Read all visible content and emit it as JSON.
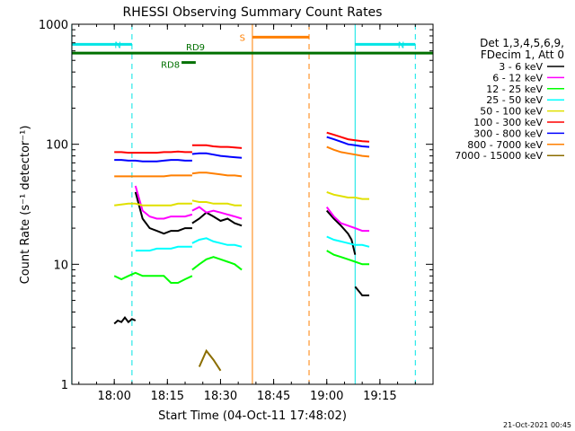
{
  "chart_data": {
    "type": "line",
    "title": "RHESSI Observing Summary Count Rates",
    "xlabel": "Start Time (04-Oct-11 17:48:02)",
    "ylabel": "Count Rate (s⁻¹ detector⁻¹)",
    "yscale": "log",
    "ylim": [
      1,
      1000
    ],
    "xlim": [
      "17:48:02",
      "19:30:00"
    ],
    "x_ticks": [
      "18:00",
      "18:15",
      "18:30",
      "18:45",
      "19:00",
      "19:15"
    ],
    "y_ticks": [
      "1",
      "10",
      "100",
      "1000"
    ],
    "legend_header": [
      "Det 1,3,4,5,6,9,",
      "FDecim 1, Att 0"
    ],
    "legend_position": "right",
    "series": [
      {
        "name": "3 - 6 keV",
        "color": "#000000",
        "segments": [
          {
            "x": [
              "18:00",
              "18:01",
              "18:02",
              "18:03",
              "18:04",
              "18:05",
              "18:06"
            ],
            "y": [
              3.2,
              3.4,
              3.3,
              3.6,
              3.3,
              3.5,
              3.4
            ]
          },
          {
            "x": [
              "18:06",
              "18:08",
              "18:10",
              "18:12",
              "18:14",
              "18:16",
              "18:18",
              "18:20",
              "18:22"
            ],
            "y": [
              40,
              24,
              20,
              19,
              18,
              19,
              19,
              20,
              20
            ]
          },
          {
            "x": [
              "18:22",
              "18:24",
              "18:26",
              "18:28",
              "18:30",
              "18:32",
              "18:34",
              "18:36"
            ],
            "y": [
              22,
              24,
              27,
              25,
              23,
              24,
              22,
              21
            ]
          },
          {
            "x": [
              "19:00",
              "19:02",
              "19:04",
              "19:06",
              "19:07",
              "19:08"
            ],
            "y": [
              28,
              24,
              21,
              18,
              16,
              12
            ]
          },
          {
            "x": [
              "19:08",
              "19:09",
              "19:10",
              "19:11",
              "19:12"
            ],
            "y": [
              6.5,
              6.0,
              5.5,
              5.5,
              5.5
            ]
          }
        ]
      },
      {
        "name": "6 - 12 keV",
        "color": "#ff00ff",
        "segments": [
          {
            "x": [
              "18:06",
              "18:08",
              "18:10",
              "18:12",
              "18:14",
              "18:16",
              "18:18",
              "18:20",
              "18:22"
            ],
            "y": [
              45,
              28,
              25,
              24,
              24,
              25,
              25,
              25,
              26
            ]
          },
          {
            "x": [
              "18:22",
              "18:24",
              "18:26",
              "18:28",
              "18:30",
              "18:32",
              "18:34",
              "18:36"
            ],
            "y": [
              28,
              30,
              27,
              28,
              27,
              26,
              25,
              24
            ]
          },
          {
            "x": [
              "19:00",
              "19:02",
              "19:04",
              "19:06",
              "19:08",
              "19:10",
              "19:12"
            ],
            "y": [
              30,
              25,
              22,
              21,
              20,
              19,
              19
            ]
          }
        ]
      },
      {
        "name": "12 - 25 keV",
        "color": "#00ff00",
        "segments": [
          {
            "x": [
              "18:00",
              "18:02",
              "18:04",
              "18:06",
              "18:08",
              "18:10",
              "18:12",
              "18:14",
              "18:16",
              "18:18",
              "18:20",
              "18:22"
            ],
            "y": [
              8.0,
              7.5,
              8.0,
              8.5,
              8.0,
              8.0,
              8.0,
              8.0,
              7.0,
              7.0,
              7.5,
              8.0
            ]
          },
          {
            "x": [
              "18:22",
              "18:24",
              "18:26",
              "18:28",
              "18:30",
              "18:32",
              "18:34",
              "18:36"
            ],
            "y": [
              9.0,
              10,
              11,
              11.5,
              11,
              10.5,
              10,
              9.0
            ]
          },
          {
            "x": [
              "19:00",
              "19:02",
              "19:04",
              "19:06",
              "19:08",
              "19:10",
              "19:12"
            ],
            "y": [
              13,
              12,
              11.5,
              11,
              10.5,
              10,
              10
            ]
          }
        ]
      },
      {
        "name": "25 - 50 keV",
        "color": "#00ffff",
        "segments": [
          {
            "x": [
              "18:06",
              "18:08",
              "18:10",
              "18:12",
              "18:14",
              "18:16",
              "18:18",
              "18:20",
              "18:22"
            ],
            "y": [
              13,
              13,
              13,
              13.5,
              13.5,
              13.5,
              14,
              14,
              14
            ]
          },
          {
            "x": [
              "18:22",
              "18:24",
              "18:26",
              "18:28",
              "18:30",
              "18:32",
              "18:34",
              "18:36"
            ],
            "y": [
              15,
              16,
              16.5,
              15.5,
              15,
              14.5,
              14.5,
              14
            ]
          },
          {
            "x": [
              "19:00",
              "19:02",
              "19:04",
              "19:06",
              "19:08",
              "19:10",
              "19:12"
            ],
            "y": [
              17,
              16,
              15.5,
              15,
              14.5,
              14.5,
              14
            ]
          }
        ]
      },
      {
        "name": "50 - 100 keV",
        "color": "#e0e000",
        "segments": [
          {
            "x": [
              "18:00",
              "18:02",
              "18:04",
              "18:06",
              "18:08",
              "18:10",
              "18:12",
              "18:14",
              "18:16",
              "18:18",
              "18:20",
              "18:22"
            ],
            "y": [
              31,
              31.5,
              32,
              32,
              31,
              31,
              31,
              31,
              31,
              32,
              32,
              32
            ]
          },
          {
            "x": [
              "18:22",
              "18:24",
              "18:26",
              "18:28",
              "18:30",
              "18:32",
              "18:34",
              "18:36"
            ],
            "y": [
              34,
              33,
              33,
              32,
              32,
              32,
              31,
              31
            ]
          },
          {
            "x": [
              "19:00",
              "19:02",
              "19:04",
              "19:06",
              "19:08",
              "19:10",
              "19:12"
            ],
            "y": [
              40,
              38,
              37,
              36,
              36,
              35,
              35
            ]
          }
        ]
      },
      {
        "name": "100 - 300 keV",
        "color": "#ff0000",
        "segments": [
          {
            "x": [
              "18:00",
              "18:02",
              "18:04",
              "18:06",
              "18:08",
              "18:10",
              "18:12",
              "18:14",
              "18:16",
              "18:18",
              "18:20",
              "18:22"
            ],
            "y": [
              86,
              86,
              85,
              85,
              85,
              85,
              85,
              86,
              86,
              87,
              86,
              86
            ]
          },
          {
            "x": [
              "18:22",
              "18:24",
              "18:26",
              "18:28",
              "18:30",
              "18:32",
              "18:34",
              "18:36"
            ],
            "y": [
              98,
              98,
              98,
              96,
              95,
              95,
              94,
              93
            ]
          },
          {
            "x": [
              "19:00",
              "19:02",
              "19:04",
              "19:06",
              "19:08",
              "19:10",
              "19:12"
            ],
            "y": [
              125,
              120,
              115,
              110,
              108,
              106,
              105
            ]
          }
        ]
      },
      {
        "name": "300 - 800 keV",
        "color": "#0000ff",
        "segments": [
          {
            "x": [
              "18:00",
              "18:02",
              "18:04",
              "18:06",
              "18:08",
              "18:10",
              "18:12",
              "18:14",
              "18:16",
              "18:18",
              "18:20",
              "18:22"
            ],
            "y": [
              74,
              74,
              73,
              73,
              72,
              72,
              72,
              73,
              74,
              74,
              73,
              73
            ]
          },
          {
            "x": [
              "18:22",
              "18:24",
              "18:26",
              "18:28",
              "18:30",
              "18:32",
              "18:34",
              "18:36"
            ],
            "y": [
              83,
              84,
              84,
              82,
              80,
              79,
              78,
              77
            ]
          },
          {
            "x": [
              "19:00",
              "19:02",
              "19:04",
              "19:06",
              "19:08",
              "19:10",
              "19:12"
            ],
            "y": [
              115,
              110,
              105,
              100,
              98,
              96,
              95
            ]
          }
        ]
      },
      {
        "name": "800 - 7000 keV",
        "color": "#ff7f00",
        "segments": [
          {
            "x": [
              "18:00",
              "18:02",
              "18:04",
              "18:06",
              "18:08",
              "18:10",
              "18:12",
              "18:14",
              "18:16",
              "18:18",
              "18:20",
              "18:22"
            ],
            "y": [
              54,
              54,
              54,
              54,
              54,
              54,
              54,
              54,
              55,
              55,
              55,
              55
            ]
          },
          {
            "x": [
              "18:22",
              "18:24",
              "18:26",
              "18:28",
              "18:30",
              "18:32",
              "18:34",
              "18:36"
            ],
            "y": [
              57,
              58,
              58,
              57,
              56,
              55,
              55,
              54
            ]
          },
          {
            "x": [
              "19:00",
              "19:02",
              "19:04",
              "19:06",
              "19:08",
              "19:10",
              "19:12"
            ],
            "y": [
              95,
              90,
              86,
              84,
              82,
              80,
              79
            ]
          }
        ]
      },
      {
        "name": "7000 - 15000 keV",
        "color": "#8b6d00",
        "segments": [
          {
            "x": [
              "18:24",
              "18:26",
              "18:28",
              "18:30"
            ],
            "y": [
              1.4,
              1.9,
              1.6,
              1.3
            ]
          }
        ]
      }
    ],
    "annotations": [
      {
        "label": "N",
        "color": "#00e5e5",
        "level": 680,
        "x_start": "17:48",
        "x_end": "18:05",
        "marker_line_x": "18:05",
        "marker_style": "dashed"
      },
      {
        "label": "N",
        "color": "#00e5e5",
        "level": 680,
        "x_start": "19:08",
        "x_end": "19:25",
        "marker_line_x": "19:25",
        "marker_style": "dashed"
      },
      {
        "label": "S",
        "color": "#ff7f00",
        "level": 780,
        "x_start": "18:39",
        "x_end": "18:55",
        "marker_line_x": "18:55",
        "marker_style": "dashed"
      },
      {
        "label": "RD9",
        "color": "#007000",
        "level": 575,
        "x_start": "17:48",
        "x_end": "19:30"
      },
      {
        "label": "RD8",
        "color": "#007000",
        "level": 480,
        "x_start": "18:19",
        "x_end": "18:23"
      }
    ],
    "vertical_lines": [
      {
        "x": "17:48",
        "color": "#00e5e5",
        "style": "solid"
      },
      {
        "x": "18:05",
        "color": "#00e5e5",
        "style": "dashed"
      },
      {
        "x": "18:39",
        "color": "#ff7f00",
        "style": "solid"
      },
      {
        "x": "18:55",
        "color": "#ff7f00",
        "style": "dashed"
      },
      {
        "x": "19:08",
        "color": "#00e5e5",
        "style": "solid"
      },
      {
        "x": "19:25",
        "color": "#00e5e5",
        "style": "dashed"
      }
    ]
  },
  "footer_timestamp": "21-Oct-2021 00:45"
}
